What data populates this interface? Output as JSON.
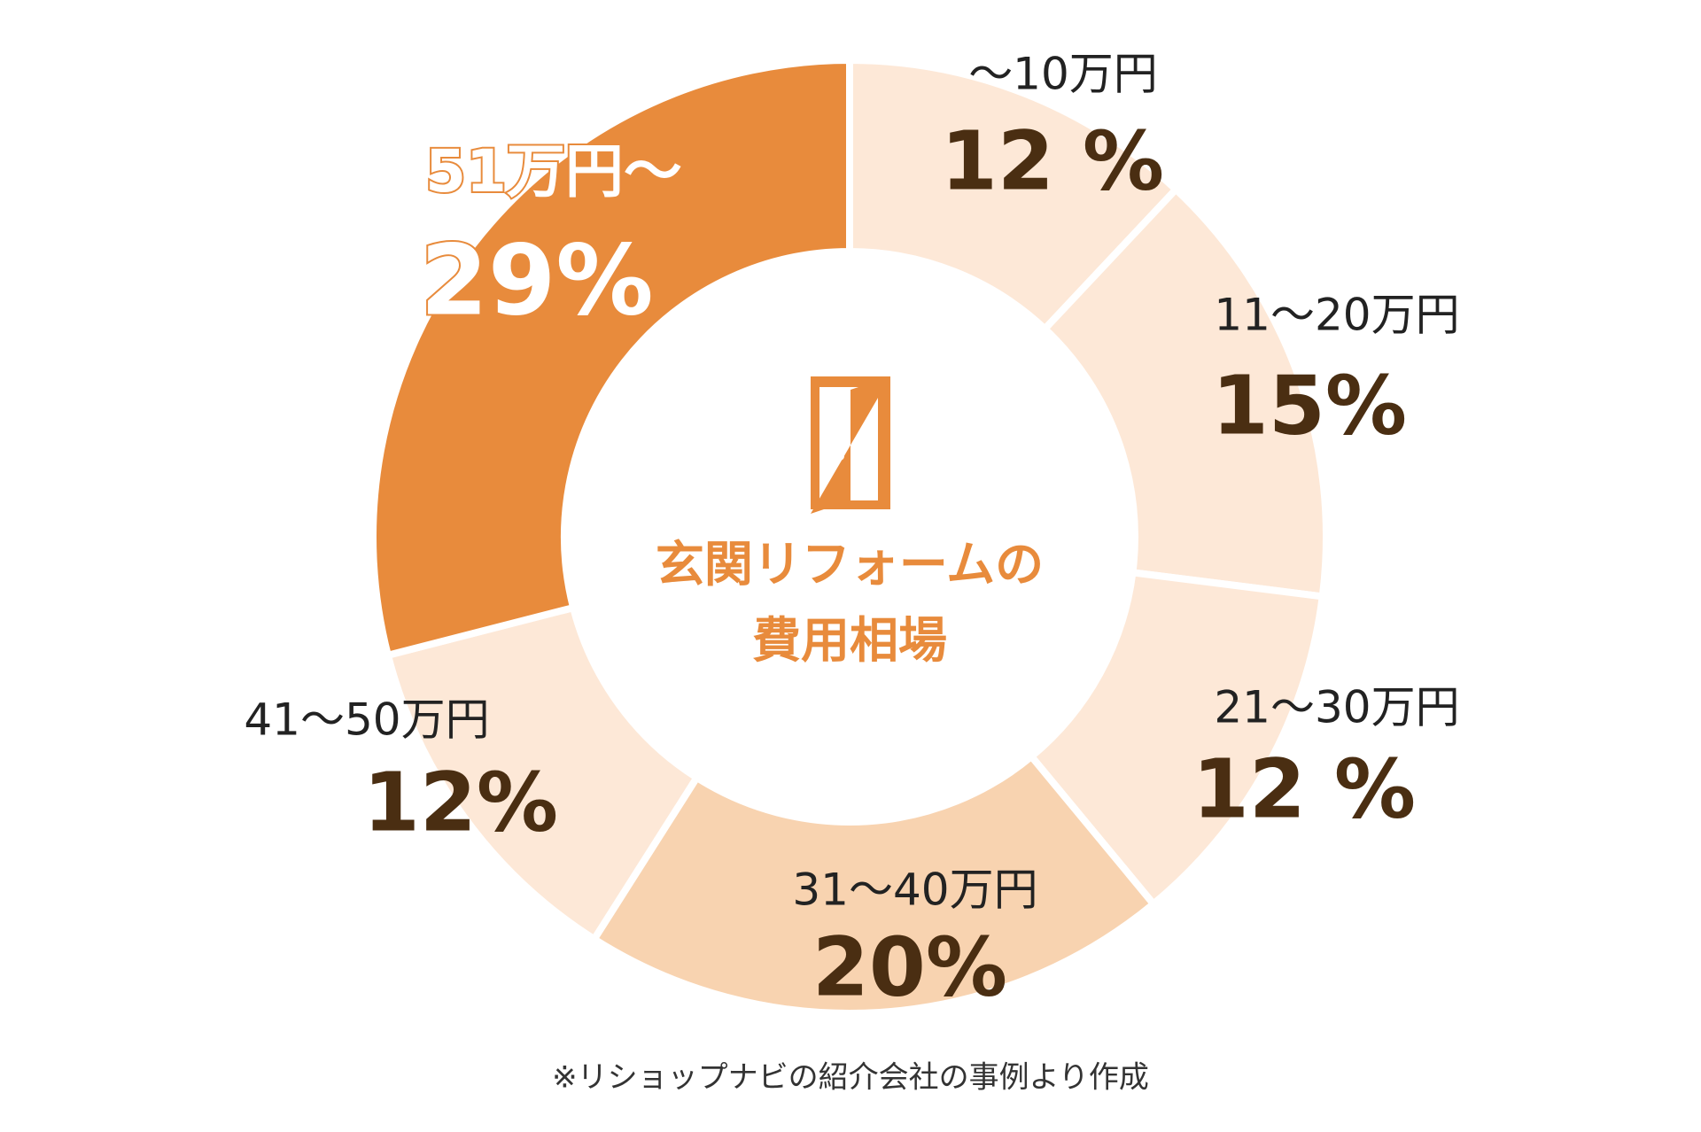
{
  "chart_data": {
    "type": "donut",
    "center_label": [
      "玄関リフォームの",
      "費用相場"
    ],
    "categories": [
      "〜10万円",
      "11〜20万円",
      "21〜30万円",
      "31〜40万円",
      "41〜50万円",
      "51万円〜"
    ],
    "values": [
      12,
      15,
      12,
      20,
      12,
      29
    ],
    "value_labels": [
      "12 %",
      "15%",
      "12 %",
      "20%",
      "12%",
      "29%"
    ],
    "colors": [
      "#fde8d7",
      "#fde8d7",
      "#fde8d7",
      "#f8d3b0",
      "#fde8d7",
      "#e88b3c"
    ]
  },
  "footnote": "※リショップナビの紹介会社の事例より作成"
}
